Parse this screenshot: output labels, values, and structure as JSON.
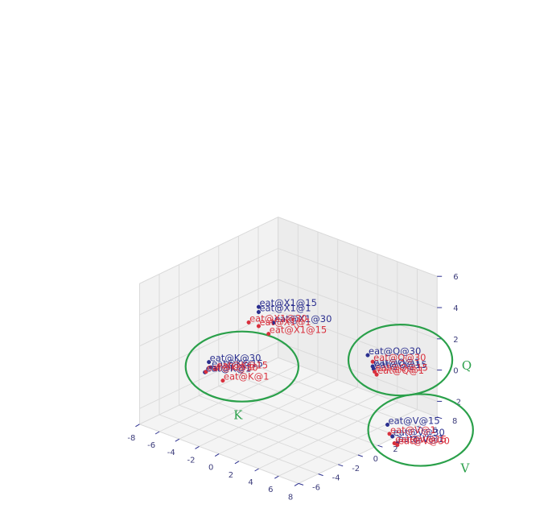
{
  "chart_data": {
    "type": "scatter",
    "title": "",
    "xlabel": "",
    "ylabel": "",
    "zlabel": "",
    "grid": true,
    "x_ticks": [
      "-8",
      "-6",
      "-4",
      "-2",
      "0",
      "2",
      "4",
      "6",
      "8"
    ],
    "y_ticks": [
      "-6",
      "-4",
      "-2",
      "0",
      "2",
      "4",
      "6",
      "8"
    ],
    "z_ticks": [
      "-2",
      "0",
      "2",
      "4",
      "6"
    ],
    "xlim": [
      -8,
      8
    ],
    "ylim": [
      -6,
      8
    ],
    "zlim": [
      -3,
      6
    ],
    "colors": {
      "blue": "#2b2f8f",
      "red": "#d9303d",
      "circle": "#2aa04a"
    },
    "series": [
      {
        "color": "blue",
        "points": [
          {
            "label": "eat@X1@15",
            "x": 1.5,
            "y": -3.5,
            "z": 6.0
          },
          {
            "label": "eat@X1@1",
            "x": 1.0,
            "y": -3.0,
            "z": 5.4
          },
          {
            "label": "eat@X1@30",
            "x": 2.0,
            "y": -2.5,
            "z": 4.8
          },
          {
            "label": "eat@Q@30",
            "x": 6.0,
            "y": 3.0,
            "z": 2.0
          },
          {
            "label": "eat@Q@1",
            "x": 6.5,
            "y": 3.0,
            "z": 1.4
          },
          {
            "label": "eat@Q@15",
            "x": 6.3,
            "y": 3.3,
            "z": 1.1
          },
          {
            "label": "eat@K@30",
            "x": -5.5,
            "y": -1.5,
            "z": 0.2
          },
          {
            "label": "eat@K@15",
            "x": -5.5,
            "y": -1.3,
            "z": -0.2
          },
          {
            "label": "eat@K@1",
            "x": -6.0,
            "y": -1.4,
            "z": -0.6
          },
          {
            "label": "eat@V@15",
            "x": 5.0,
            "y": 6.0,
            "z": -3.6
          },
          {
            "label": "eat@V@30",
            "x": 5.0,
            "y": 6.5,
            "z": -4.5
          },
          {
            "label": "eat@V@1",
            "x": 5.5,
            "y": 6.5,
            "z": -4.8
          }
        ]
      },
      {
        "color": "red",
        "points": [
          {
            "label": "eat@X1@30",
            "x": 0.0,
            "y": -3.0,
            "z": 4.5
          },
          {
            "label": "eat@X1@1",
            "x": 1.0,
            "y": -3.0,
            "z": 4.5
          },
          {
            "label": "eat@X1@15",
            "x": 1.0,
            "y": -2.0,
            "z": 3.7
          },
          {
            "label": "eat@Q@30",
            "x": 6.5,
            "y": 3.0,
            "z": 1.7
          },
          {
            "label": "eat@Q@15",
            "x": 6.5,
            "y": 3.2,
            "z": 1.0
          },
          {
            "label": "eat@Q@1",
            "x": 6.4,
            "y": 3.5,
            "z": 0.7
          },
          {
            "label": "eat@K@15",
            "x": -5.0,
            "y": -1.3,
            "z": -0.2
          },
          {
            "label": "eat@K@30",
            "x": -6.0,
            "y": -1.3,
            "z": -0.6
          },
          {
            "label": "eat@K@1",
            "x": -4.0,
            "y": -1.6,
            "z": -0.6
          },
          {
            "label": "eat@V@1",
            "x": 4.9,
            "y": 6.3,
            "z": -4.3
          },
          {
            "label": "eat@V@15",
            "x": 5.0,
            "y": 6.7,
            "z": -5.0
          },
          {
            "label": "eat@V@30",
            "x": 5.0,
            "y": 7.0,
            "z": -5.2
          }
        ]
      }
    ],
    "annotations": [
      {
        "label": "Q",
        "cluster": "Q"
      },
      {
        "label": "K",
        "cluster": "K"
      },
      {
        "label": "V",
        "cluster": "V"
      }
    ]
  }
}
